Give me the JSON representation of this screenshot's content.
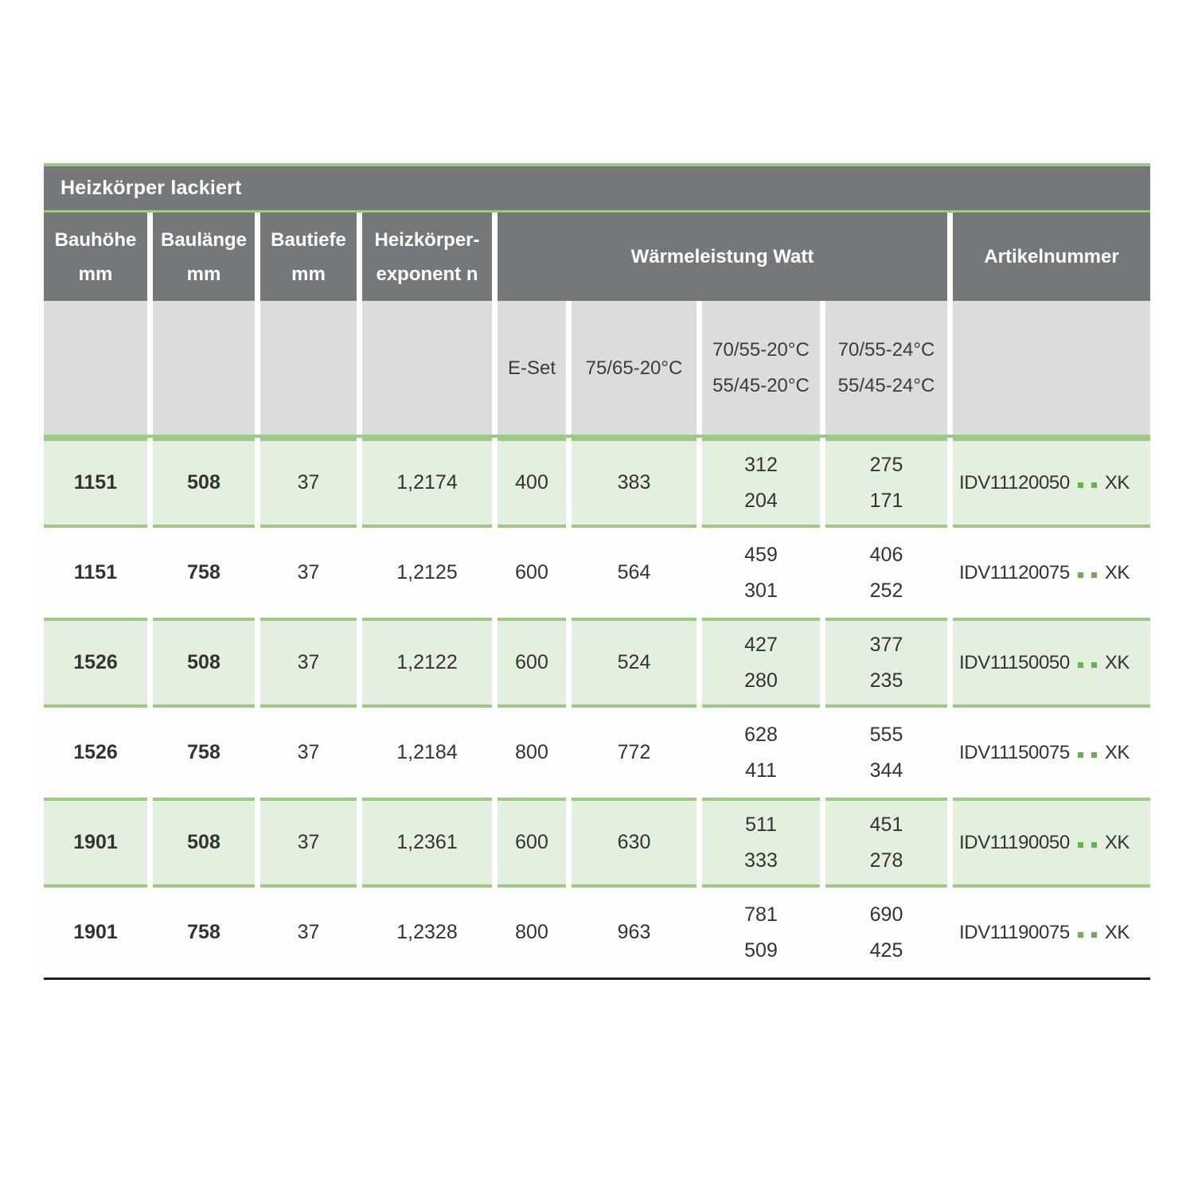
{
  "colors": {
    "header_gray": "#75787a",
    "subheader_gray": "#dbdddc",
    "row_green": "#e5efdf",
    "line_green": "#9dc987",
    "dot_green": "#69b150",
    "bottom_line": "#1d1d1d",
    "text_dark": "#333333",
    "text_white": "#ffffff"
  },
  "table": {
    "title": "Heizkörper lackiert",
    "col_headers": {
      "bauhoehe": {
        "line1": "Bauhöhe",
        "line2": "mm"
      },
      "baulaenge": {
        "line1": "Baulänge",
        "line2": "mm"
      },
      "bautiefe": {
        "line1": "Bautiefe",
        "line2": "mm"
      },
      "exponent": {
        "line1": "Heizkörper-",
        "line2": "exponent n"
      },
      "waermeleistung": "Wärmeleistung Watt",
      "artikelnummer": "Artikelnummer"
    },
    "sub_headers": {
      "e_set": "E-Set",
      "t7565": "75/65-20°C",
      "t7055_20": {
        "line1": "70/55-20°C",
        "line2": "55/45-20°C"
      },
      "t7055_24": {
        "line1": "70/55-24°C",
        "line2": "55/45-24°C"
      }
    },
    "rows": [
      {
        "bauhoehe": "1151",
        "baulaenge": "508",
        "bautiefe": "37",
        "exponent": "1,2174",
        "e_set": "400",
        "t7565": "383",
        "t7055_20": [
          "312",
          "204"
        ],
        "t7055_24": [
          "275",
          "171"
        ],
        "artikel_prefix": "IDV11120050",
        "artikel_suffix": "XK"
      },
      {
        "bauhoehe": "1151",
        "baulaenge": "758",
        "bautiefe": "37",
        "exponent": "1,2125",
        "e_set": "600",
        "t7565": "564",
        "t7055_20": [
          "459",
          "301"
        ],
        "t7055_24": [
          "406",
          "252"
        ],
        "artikel_prefix": "IDV11120075",
        "artikel_suffix": "XK"
      },
      {
        "bauhoehe": "1526",
        "baulaenge": "508",
        "bautiefe": "37",
        "exponent": "1,2122",
        "e_set": "600",
        "t7565": "524",
        "t7055_20": [
          "427",
          "280"
        ],
        "t7055_24": [
          "377",
          "235"
        ],
        "artikel_prefix": "IDV11150050",
        "artikel_suffix": "XK"
      },
      {
        "bauhoehe": "1526",
        "baulaenge": "758",
        "bautiefe": "37",
        "exponent": "1,2184",
        "e_set": "800",
        "t7565": "772",
        "t7055_20": [
          "628",
          "411"
        ],
        "t7055_24": [
          "555",
          "344"
        ],
        "artikel_prefix": "IDV11150075",
        "artikel_suffix": "XK"
      },
      {
        "bauhoehe": "1901",
        "baulaenge": "508",
        "bautiefe": "37",
        "exponent": "1,2361",
        "e_set": "600",
        "t7565": "630",
        "t7055_20": [
          "511",
          "333"
        ],
        "t7055_24": [
          "451",
          "278"
        ],
        "artikel_prefix": "IDV11190050",
        "artikel_suffix": "XK"
      },
      {
        "bauhoehe": "1901",
        "baulaenge": "758",
        "bautiefe": "37",
        "exponent": "1,2328",
        "e_set": "800",
        "t7565": "963",
        "t7055_20": [
          "781",
          "509"
        ],
        "t7055_24": [
          "690",
          "425"
        ],
        "artikel_prefix": "IDV11190075",
        "artikel_suffix": "XK"
      }
    ]
  }
}
